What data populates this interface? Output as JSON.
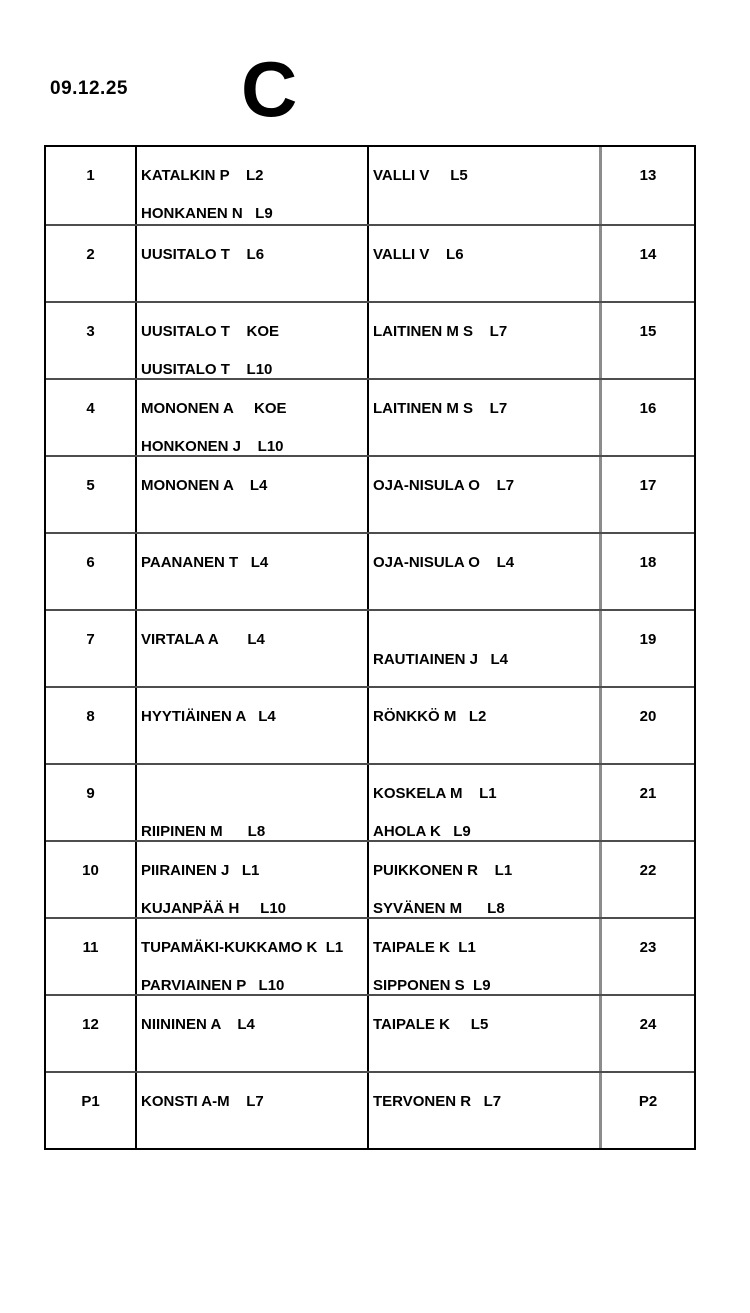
{
  "header": {
    "date": "09.12.25",
    "group_letter": "C"
  },
  "table": {
    "rows": [
      {
        "n1": "1",
        "left1": "KATALKIN P    L2",
        "left2": "HONKANEN N   L9",
        "right1": "VALLI V     L5",
        "right2": "",
        "n2": "13"
      },
      {
        "n1": "2",
        "left1": "UUSITALO T    L6",
        "left2": "",
        "right1": "VALLI V    L6",
        "right2": "",
        "n2": "14"
      },
      {
        "n1": "3",
        "left1": "UUSITALO T    KOE",
        "left2": "UUSITALO T    L10",
        "right1": "LAITINEN M S    L7",
        "right2": "",
        "n2": "15"
      },
      {
        "n1": "4",
        "left1": "MONONEN A     KOE",
        "left2": "HONKONEN J    L10",
        "right1": "LAITINEN M S    L7",
        "right2": "",
        "n2": "16"
      },
      {
        "n1": "5",
        "left1": "MONONEN A    L4",
        "left2": "",
        "right1": "OJA-NISULA O    L7",
        "right2": "",
        "n2": "17"
      },
      {
        "n1": "6",
        "left1": "PAANANEN T   L4",
        "left2": "",
        "right1": "OJA-NISULA O    L4",
        "right2": "",
        "n2": "18"
      },
      {
        "n1": "7",
        "left1": "VIRTALA A       L4",
        "left2": "",
        "right1": "RAUTIAINEN J   L4",
        "right2": "",
        "n2": "19"
      },
      {
        "n1": "8",
        "left1": "HYYTIÄINEN A   L4",
        "left2": "",
        "right1": "RÖNKKÖ M   L2",
        "right2": "",
        "n2": "20"
      },
      {
        "n1": "9",
        "left1": "",
        "left2": "RIIPINEN M      L8",
        "right1": "KOSKELA M    L1",
        "right2": "AHOLA K   L9",
        "n2": "21"
      },
      {
        "n1": "10",
        "left1": "PIIRAINEN J   L1",
        "left2": "KUJANPÄÄ H     L10",
        "right1": "PUIKKONEN R    L1",
        "right2": "SYVÄNEN M      L8",
        "n2": "22"
      },
      {
        "n1": "11",
        "left1": "TUPAMÄKI-KUKKAMO K  L1",
        "left2": "PARVIAINEN P   L10",
        "right1": "TAIPALE K  L1",
        "right2": "SIPPONEN S  L9",
        "n2": "23"
      },
      {
        "n1": "12",
        "left1": "NIININEN A    L4",
        "left2": "",
        "right1": "TAIPALE K     L5",
        "right2": "",
        "n2": "24"
      },
      {
        "n1": "P1",
        "left1": "KONSTI A-M    L7",
        "left2": "",
        "right1": "TERVONEN R   L7",
        "right2": "",
        "n2": "P2"
      }
    ]
  }
}
